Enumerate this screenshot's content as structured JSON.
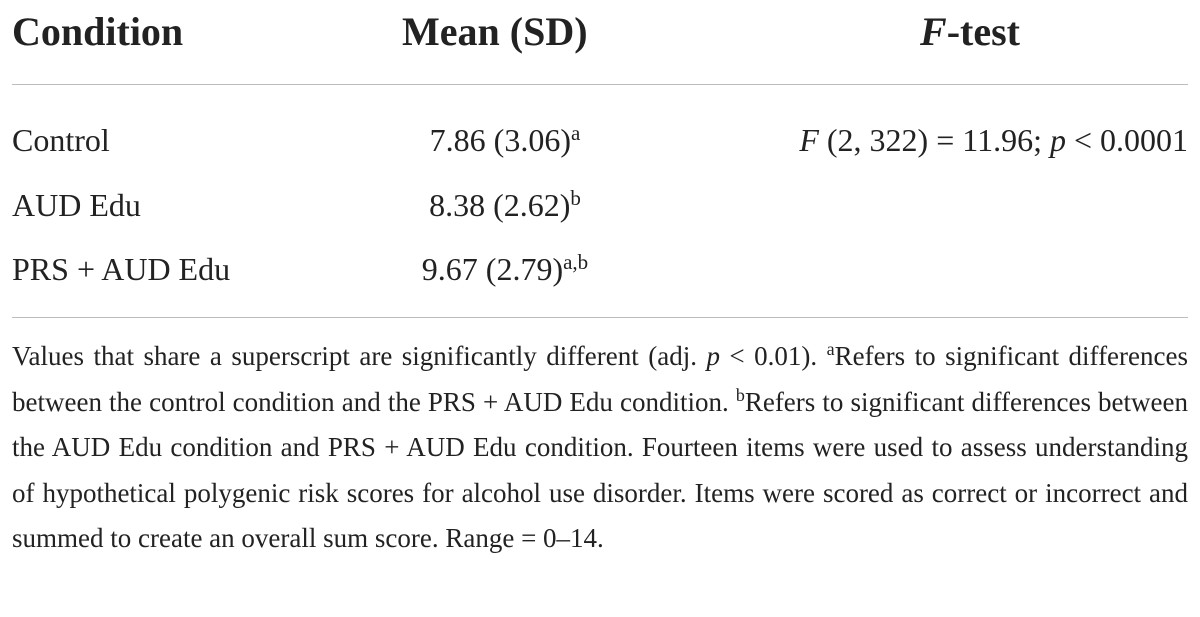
{
  "table": {
    "headers": {
      "condition": "Condition",
      "mean_sd": "Mean (SD)",
      "ftest_f": "F",
      "ftest_rest": "-test"
    },
    "rows": [
      {
        "condition": "Control",
        "mean_sd": "7.86 (3.06)",
        "sup": "a"
      },
      {
        "condition": "AUD Edu",
        "mean_sd": "8.38 (2.62)",
        "sup": "b"
      },
      {
        "condition": "PRS + AUD Edu",
        "mean_sd": "9.67 (2.79)",
        "sup": "a,b"
      }
    ],
    "ftest": {
      "f": "F",
      "middle": " (2, 322) = 11.96; ",
      "p": "p",
      "tail": " < 0.0001"
    }
  },
  "footnote": {
    "part1": "Values that share a superscript are significantly different (adj. ",
    "p": "p",
    "part2": " < 0.01). ",
    "sup_a": "a",
    "part3": "Refers to significant differences between the control condition and the PRS + AUD Edu condition. ",
    "sup_b": "b",
    "part4": "Refers to significant differences between the AUD Edu condition and PRS + AUD Edu condition. Fourteen items were used to assess understanding of hypothetical polygenic risk scores for alcohol use disorder. Items were scored as correct or incorrect and summed to create an overall sum score. Range = 0–14."
  }
}
